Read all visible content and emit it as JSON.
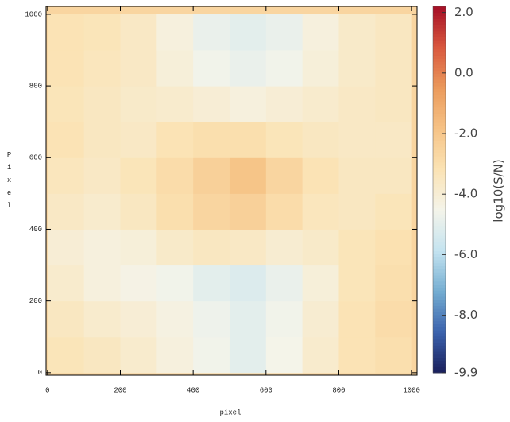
{
  "chart_data": {
    "type": "heatmap",
    "xlabel": "pixel",
    "ylabel": "Pixel",
    "colorbar_label": "log10(S/N)",
    "xlim": [
      -4,
      1015
    ],
    "ylim": [
      -7,
      1022
    ],
    "xticks": [
      0,
      200,
      400,
      600,
      800,
      1000
    ],
    "yticks": [
      0,
      200,
      400,
      600,
      800,
      1000
    ],
    "xbins": [
      0,
      100,
      200,
      300,
      400,
      500,
      600,
      700,
      800,
      900,
      1000
    ],
    "ybins": [
      0,
      100,
      200,
      300,
      400,
      500,
      600,
      700,
      800,
      900,
      1000
    ],
    "z": [
      [
        -3.3,
        -3.5,
        -3.8,
        -4.2,
        -4.6,
        -5.0,
        -4.5,
        -3.8,
        -3.2,
        -3.0
      ],
      [
        -3.5,
        -3.8,
        -4.0,
        -4.3,
        -4.7,
        -5.0,
        -4.6,
        -3.9,
        -3.2,
        -2.9
      ],
      [
        -3.8,
        -4.2,
        -4.4,
        -4.6,
        -5.0,
        -5.2,
        -4.8,
        -4.1,
        -3.3,
        -3.0
      ],
      [
        -4.0,
        -4.2,
        -4.1,
        -3.7,
        -3.5,
        -3.6,
        -3.9,
        -3.7,
        -3.3,
        -3.1
      ],
      [
        -3.6,
        -3.8,
        -3.5,
        -3.0,
        -2.6,
        -2.4,
        -2.9,
        -3.4,
        -3.5,
        -3.3
      ],
      [
        -3.4,
        -3.6,
        -3.3,
        -2.9,
        -2.4,
        -1.9,
        -2.6,
        -3.2,
        -3.5,
        -3.5
      ],
      [
        -3.2,
        -3.5,
        -3.6,
        -3.2,
        -3.0,
        -3.0,
        -3.3,
        -3.5,
        -3.6,
        -3.6
      ],
      [
        -3.3,
        -3.5,
        -3.7,
        -3.8,
        -4.0,
        -4.2,
        -4.0,
        -3.8,
        -3.6,
        -3.5
      ],
      [
        -3.2,
        -3.4,
        -3.6,
        -4.1,
        -4.6,
        -4.8,
        -4.6,
        -4.1,
        -3.7,
        -3.5
      ],
      [
        -3.2,
        -3.3,
        -3.6,
        -4.2,
        -4.8,
        -5.0,
        -4.8,
        -4.2,
        -3.7,
        -3.5
      ]
    ],
    "clim": [
      -9.9,
      2.2
    ],
    "cticks": [
      {
        "value": 2,
        "label": "2.0"
      },
      {
        "value": 0,
        "label": "0.0"
      },
      {
        "value": -2,
        "label": "-2.0"
      },
      {
        "value": -4,
        "label": "-4.0"
      },
      {
        "value": -6,
        "label": "-6.0"
      },
      {
        "value": -8,
        "label": "-8.0"
      },
      -9.9
    ],
    "colormap": [
      "#1a1f5c",
      "#3b62ad",
      "#74add1",
      "#c4e3f0",
      "#f4f4ea",
      "#fbe3b4",
      "#f6c386",
      "#eb9a5c",
      "#d9583e",
      "#a50f26"
    ]
  }
}
